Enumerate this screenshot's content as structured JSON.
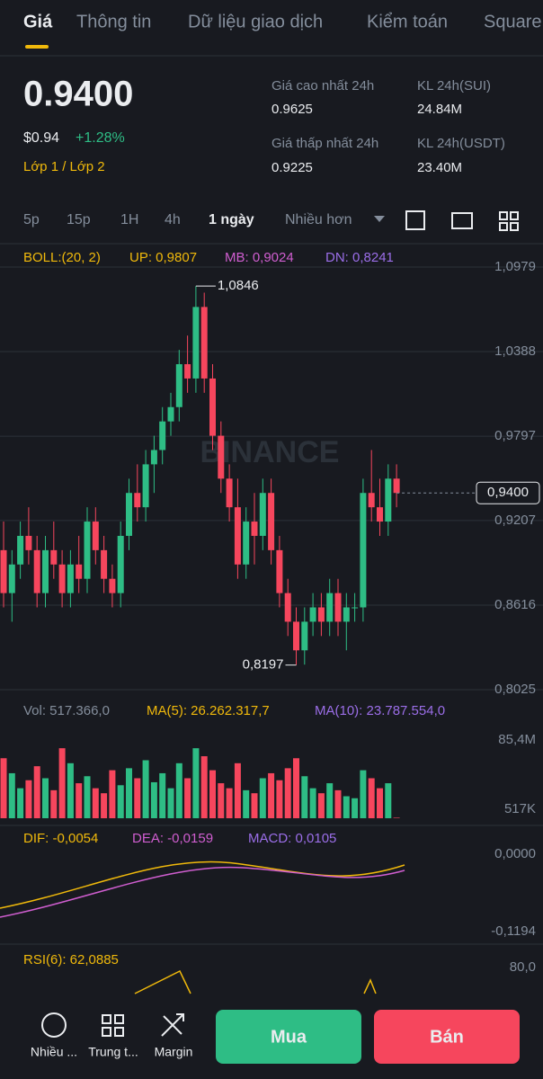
{
  "tabs": [
    "Giá",
    "Thông tin",
    "Dữ liệu giao dịch",
    "Kiểm toán",
    "Square"
  ],
  "price": {
    "last": "0.9400",
    "usd": "$0.94",
    "change": "+1.28%",
    "tag": "Lớp 1 / Lớp 2"
  },
  "stats": [
    {
      "label": "Giá cao nhất 24h",
      "value": "0.9625"
    },
    {
      "label": "KL 24h(SUI)",
      "value": "24.84M"
    },
    {
      "label": "Giá thấp nhất 24h",
      "value": "0.9225"
    },
    {
      "label": "KL 24h(USDT)",
      "value": "23.40M"
    }
  ],
  "intervals": [
    "5p",
    "15p",
    "1H",
    "4h",
    "1 ngày",
    "Nhiều hơn"
  ],
  "chart_data": {
    "type": "candlestick",
    "indicator": "BOLL:(20, 2)",
    "up": "UP: 0,9807",
    "mb": "MB: 0,9024",
    "dn": "DN: 0,8241",
    "watermark": "BINANCE",
    "candles": [
      [
        0.9,
        0.92,
        0.86,
        0.87
      ],
      [
        0.87,
        0.9,
        0.85,
        0.89
      ],
      [
        0.89,
        0.92,
        0.88,
        0.91
      ],
      [
        0.91,
        0.93,
        0.89,
        0.9
      ],
      [
        0.9,
        0.91,
        0.86,
        0.87
      ],
      [
        0.87,
        0.91,
        0.86,
        0.9
      ],
      [
        0.9,
        0.92,
        0.88,
        0.89
      ],
      [
        0.89,
        0.9,
        0.86,
        0.87
      ],
      [
        0.87,
        0.9,
        0.86,
        0.89
      ],
      [
        0.89,
        0.91,
        0.87,
        0.88
      ],
      [
        0.88,
        0.93,
        0.87,
        0.92
      ],
      [
        0.92,
        0.93,
        0.89,
        0.9
      ],
      [
        0.9,
        0.91,
        0.87,
        0.88
      ],
      [
        0.88,
        0.89,
        0.86,
        0.87
      ],
      [
        0.87,
        0.92,
        0.86,
        0.91
      ],
      [
        0.91,
        0.95,
        0.9,
        0.94
      ],
      [
        0.94,
        0.96,
        0.92,
        0.93
      ],
      [
        0.93,
        0.97,
        0.92,
        0.96
      ],
      [
        0.96,
        0.98,
        0.94,
        0.97
      ],
      [
        0.97,
        1.0,
        0.96,
        0.99
      ],
      [
        0.99,
        1.01,
        0.98,
        1.0
      ],
      [
        1.0,
        1.04,
        0.99,
        1.03
      ],
      [
        1.03,
        1.05,
        1.01,
        1.02
      ],
      [
        1.02,
        1.0846,
        1.01,
        1.07
      ],
      [
        1.07,
        1.08,
        1.01,
        1.02
      ],
      [
        1.02,
        1.03,
        0.97,
        0.98
      ],
      [
        0.98,
        0.99,
        0.94,
        0.95
      ],
      [
        0.95,
        0.96,
        0.92,
        0.93
      ],
      [
        0.93,
        0.95,
        0.88,
        0.89
      ],
      [
        0.89,
        0.93,
        0.88,
        0.92
      ],
      [
        0.92,
        0.94,
        0.89,
        0.91
      ],
      [
        0.91,
        0.95,
        0.9,
        0.94
      ],
      [
        0.94,
        0.95,
        0.89,
        0.9
      ],
      [
        0.9,
        0.91,
        0.86,
        0.87
      ],
      [
        0.87,
        0.88,
        0.84,
        0.85
      ],
      [
        0.85,
        0.86,
        0.8197,
        0.83
      ],
      [
        0.83,
        0.86,
        0.82,
        0.85
      ],
      [
        0.85,
        0.87,
        0.84,
        0.86
      ],
      [
        0.86,
        0.87,
        0.84,
        0.85
      ],
      [
        0.85,
        0.88,
        0.84,
        0.87
      ],
      [
        0.87,
        0.88,
        0.84,
        0.85
      ],
      [
        0.85,
        0.87,
        0.83,
        0.86
      ],
      [
        0.86,
        0.87,
        0.85,
        0.86
      ],
      [
        0.86,
        0.95,
        0.85,
        0.94
      ],
      [
        0.94,
        0.97,
        0.92,
        0.93
      ],
      [
        0.93,
        0.95,
        0.91,
        0.92
      ],
      [
        0.92,
        0.96,
        0.91,
        0.95
      ],
      [
        0.95,
        0.96,
        0.93,
        0.94
      ]
    ],
    "yticks": [
      {
        "value": 1.0979,
        "label": "1,0979"
      },
      {
        "value": 1.0388,
        "label": "1,0388"
      },
      {
        "value": 0.9797,
        "label": "0,9797"
      },
      {
        "value": 0.9207,
        "label": "0,9207"
      },
      {
        "value": 0.8616,
        "label": "0,8616"
      },
      {
        "value": 0.8025,
        "label": "0,8025"
      }
    ],
    "last": {
      "value": 0.94,
      "label": "0,9400"
    },
    "annotations": [
      {
        "value": 1.0846,
        "label": "1,0846"
      },
      {
        "value": 0.8197,
        "label": "0,8197"
      }
    ]
  },
  "volume": {
    "labels": [
      "Vol: 517.366,0",
      "MA(5): 26.262.317,7",
      "MA(10): 23.787.554,0"
    ],
    "yticks": [
      {
        "value": 85.4,
        "label": "85,4M"
      },
      {
        "value": 0.517,
        "label": "517K"
      }
    ],
    "values": [
      60,
      45,
      30,
      38,
      52,
      40,
      28,
      70,
      55,
      35,
      42,
      30,
      25,
      48,
      33,
      50,
      40,
      58,
      36,
      45,
      30,
      55,
      40,
      70,
      62,
      48,
      35,
      30,
      55,
      28,
      25,
      40,
      45,
      38,
      50,
      60,
      42,
      30,
      25,
      35,
      28,
      22,
      20,
      48,
      40,
      30,
      35,
      0.517
    ]
  },
  "macd": {
    "labels": [
      "DIF: -0,0054",
      "DEA: -0,0159",
      "MACD: 0,0105"
    ],
    "yticks": [
      {
        "value": 0,
        "label": "0,0000"
      },
      {
        "value": -0.1194,
        "label": "-0,1194"
      }
    ]
  },
  "rsi": {
    "label": "RSI(6): 62,0885",
    "yticks": [
      {
        "value": 80,
        "label": "80,0"
      }
    ]
  },
  "bottom": {
    "actions": [
      "Nhiều ...",
      "Trung t...",
      "Margin"
    ],
    "buy": "Mua",
    "sell": "Bán"
  }
}
